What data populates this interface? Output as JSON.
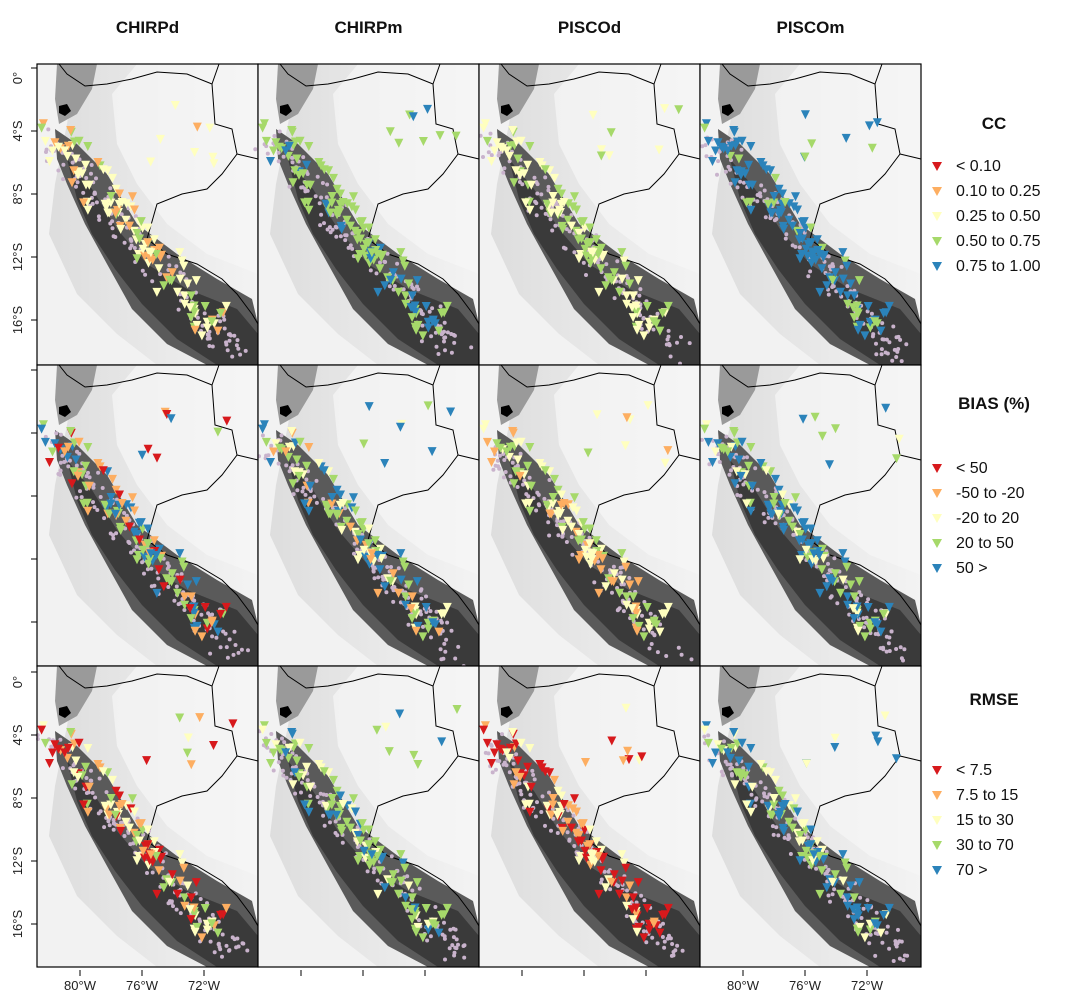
{
  "columns": [
    "CHIRPd",
    "CHIRPm",
    "PISCOd",
    "PISCOm"
  ],
  "rows": [
    {
      "title": "CC",
      "legend": [
        {
          "label": "< 0.10",
          "color": "#d7191c"
        },
        {
          "label": "0.10 to 0.25",
          "color": "#fdae61"
        },
        {
          "label": "0.25 to 0.50",
          "color": "#ffffbf"
        },
        {
          "label": "0.50 to 0.75",
          "color": "#a6d96a"
        },
        {
          "label": "0.75 to 1.00",
          "color": "#2b83ba"
        }
      ]
    },
    {
      "title": "BIAS (%)",
      "legend": [
        {
          "label": "< 50",
          "color": "#d7191c"
        },
        {
          "label": "-50 to -20",
          "color": "#fdae61"
        },
        {
          "label": "-20 to 20",
          "color": "#ffffbf"
        },
        {
          "label": "20 to 50",
          "color": "#a6d96a"
        },
        {
          "label": "50 >",
          "color": "#2b83ba"
        }
      ]
    },
    {
      "title": "RMSE",
      "legend": [
        {
          "label": "< 7.5",
          "color": "#d7191c"
        },
        {
          "label": "7.5 to 15",
          "color": "#fdae61"
        },
        {
          "label": "15 to 30",
          "color": "#ffffbf"
        },
        {
          "label": "30 to 70",
          "color": "#a6d96a"
        },
        {
          "label": "70 >",
          "color": "#2b83ba"
        }
      ]
    }
  ],
  "axes": {
    "y_ticks": [
      "0°",
      "4°S",
      "8°S",
      "12°S",
      "16°S"
    ],
    "x_ticks": [
      "80°W",
      "76°W",
      "72°W"
    ]
  },
  "colors": {
    "stations_gray": "#c9b3cc",
    "andes_dark": "#3c3c3c",
    "lowland": "#e9e9e9",
    "frame": "#000000"
  }
}
